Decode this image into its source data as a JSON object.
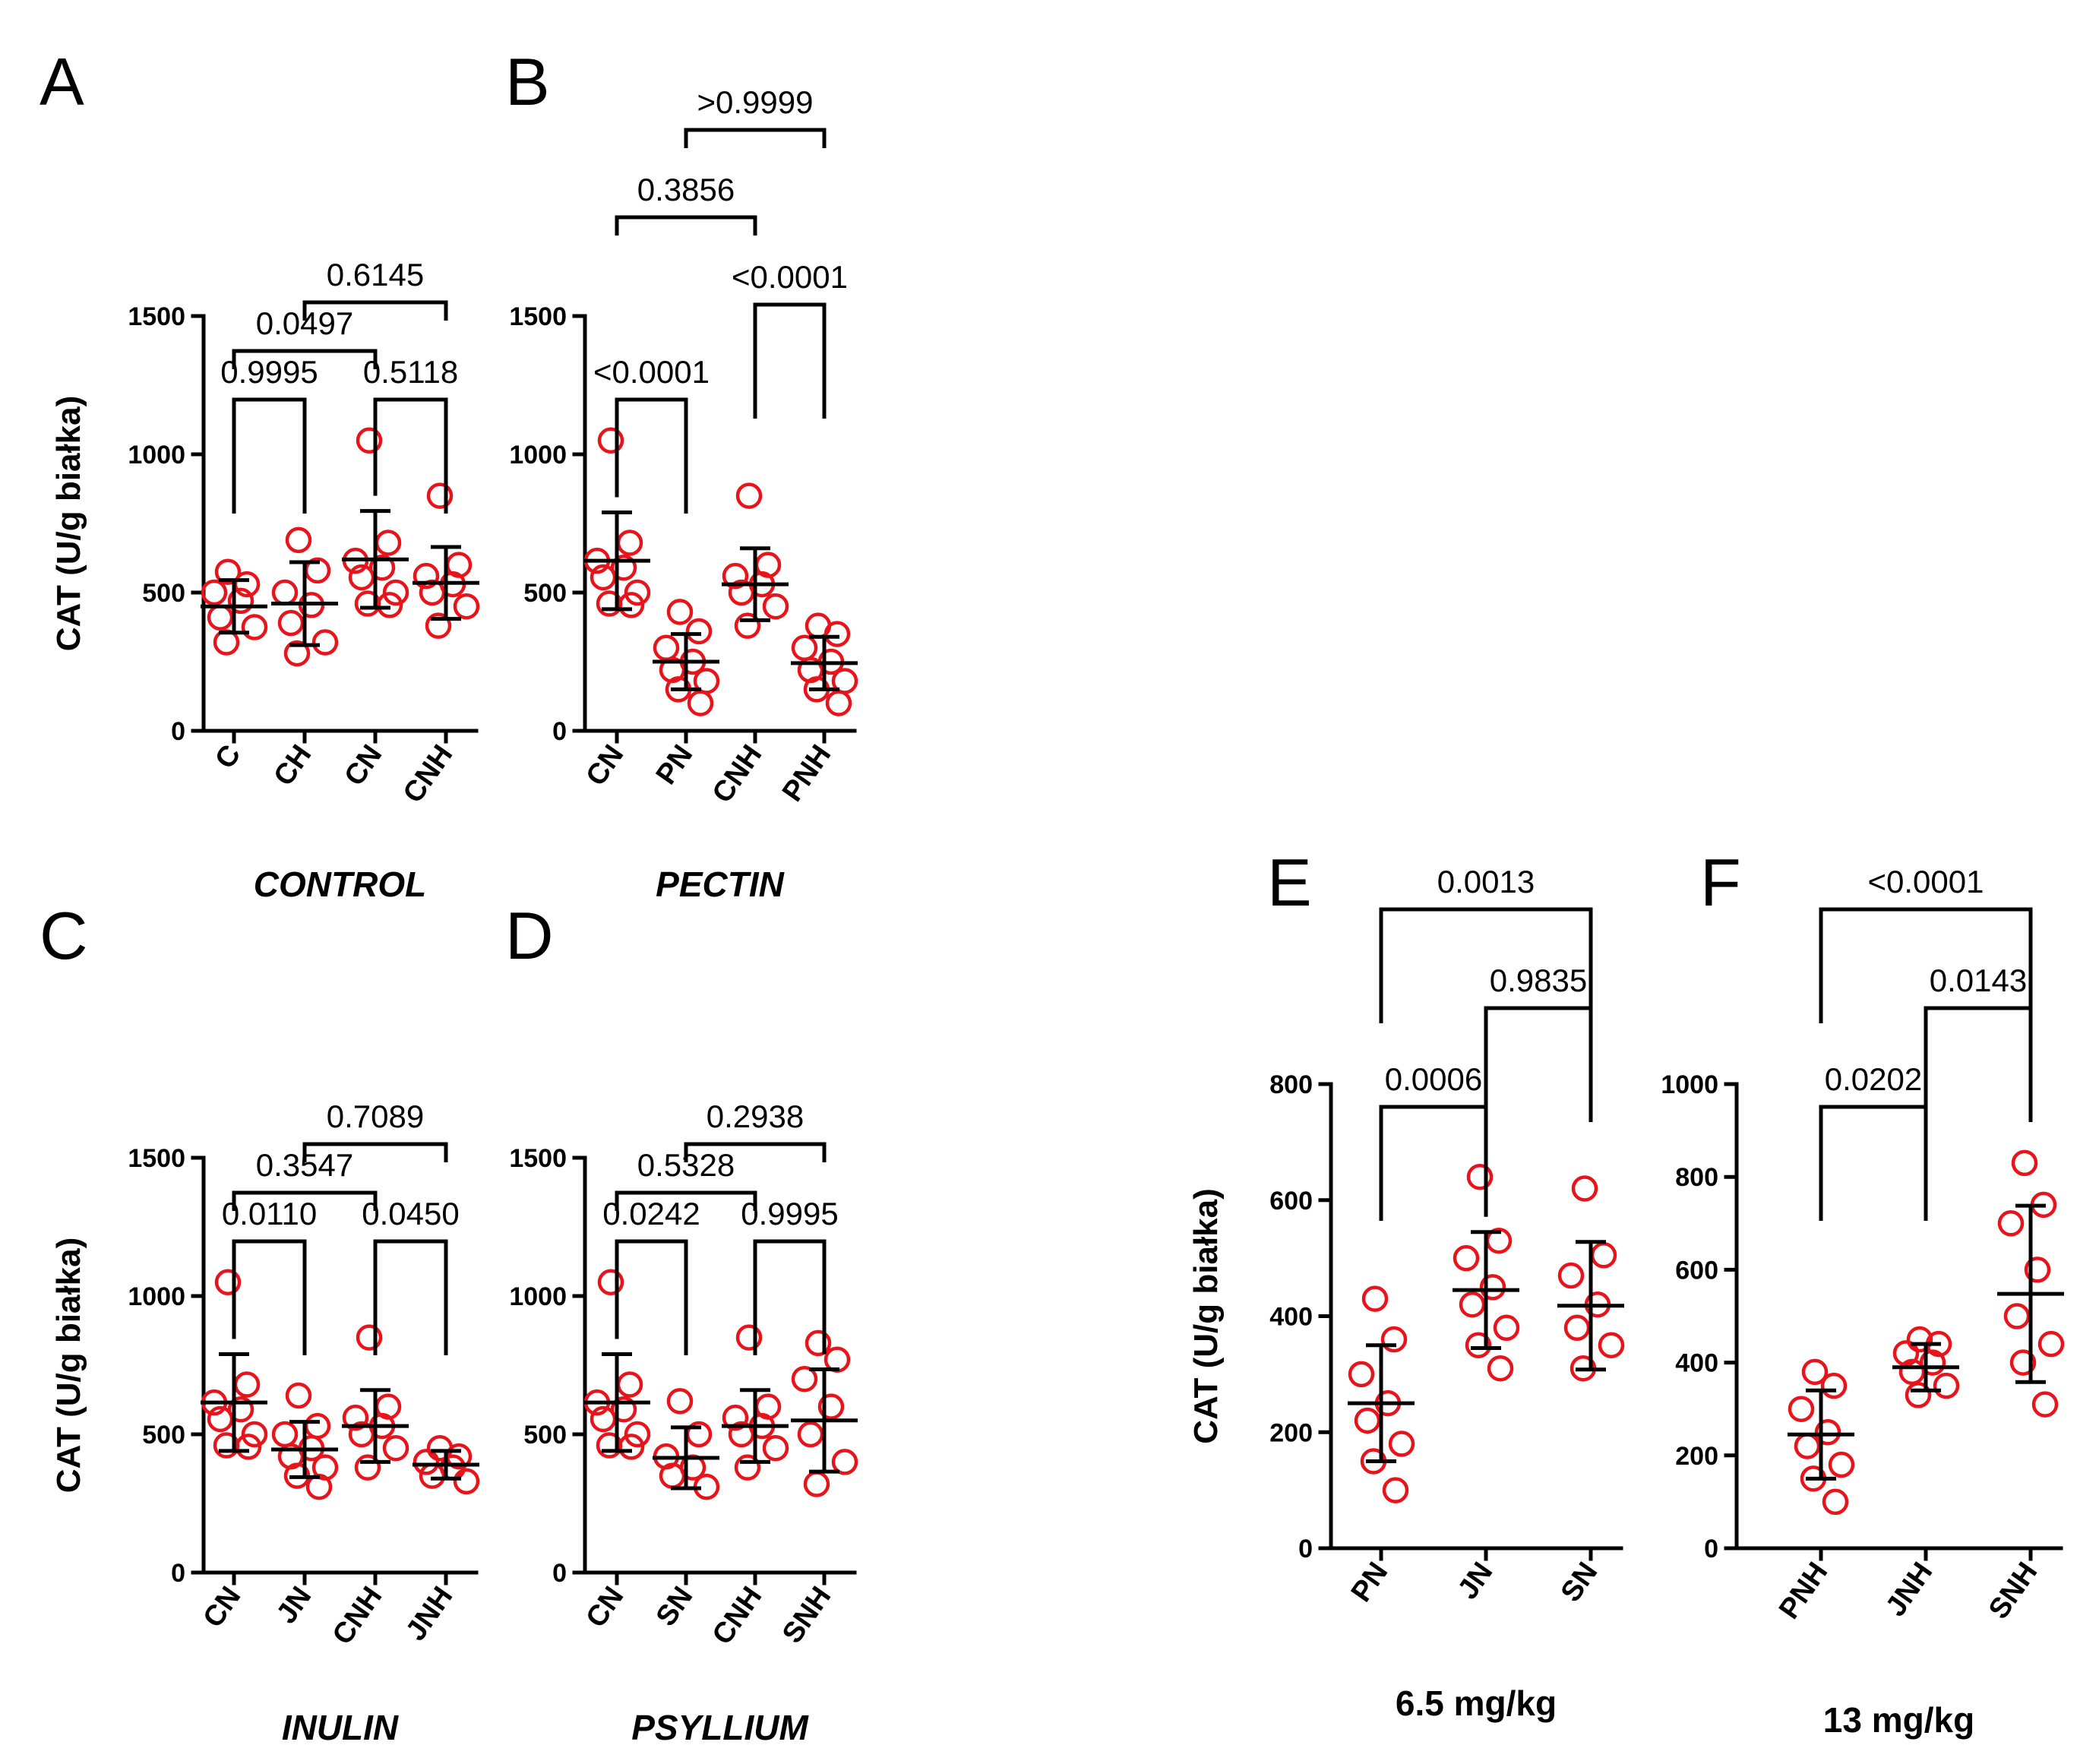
{
  "figure_title": "",
  "colors": {
    "point": "#e8141c",
    "line": "#000000"
  },
  "chart_data": [
    {
      "type": "scatter",
      "panel": "A",
      "group_label": "CONTROL",
      "group_italic": true,
      "ylabel": "CAT (U/g białka)",
      "ylim": [
        0,
        1500
      ],
      "yticks": [
        0,
        500,
        1000,
        1500
      ],
      "categories": [
        "C",
        "CH",
        "CN",
        "CNH"
      ],
      "means": [
        450,
        460,
        620,
        535
      ],
      "sd": [
        95,
        150,
        175,
        130
      ],
      "points": [
        [
          575,
          530,
          500,
          470,
          410,
          375,
          320
        ],
        [
          690,
          580,
          500,
          455,
          390,
          320,
          280
        ],
        [
          1050,
          680,
          615,
          590,
          555,
          500,
          460,
          455
        ],
        [
          850,
          600,
          560,
          530,
          500,
          450,
          380
        ]
      ],
      "comparisons": [
        {
          "from": 0,
          "to": 1,
          "p": "0.9995"
        },
        {
          "from": 2,
          "to": 3,
          "p": "0.5118"
        },
        {
          "from": 0,
          "to": 2,
          "p": "0.0497"
        },
        {
          "from": 1,
          "to": 3,
          "p": "0.6145"
        }
      ]
    },
    {
      "type": "scatter",
      "panel": "B",
      "group_label": "PECTIN",
      "group_italic": true,
      "ylabel": "",
      "ylim": [
        0,
        1500
      ],
      "yticks": [
        0,
        500,
        1000,
        1500
      ],
      "categories": [
        "CN",
        "PN",
        "CNH",
        "PNH"
      ],
      "means": [
        615,
        250,
        530,
        245
      ],
      "sd": [
        175,
        100,
        130,
        95
      ],
      "points": [
        [
          1050,
          680,
          615,
          590,
          555,
          500,
          460,
          455
        ],
        [
          430,
          360,
          300,
          250,
          220,
          180,
          150,
          100
        ],
        [
          850,
          600,
          560,
          530,
          500,
          450,
          380
        ],
        [
          380,
          350,
          300,
          250,
          220,
          180,
          150,
          100
        ]
      ],
      "comparisons": [
        {
          "from": 0,
          "to": 1,
          "p": "<0.0001"
        },
        {
          "from": 2,
          "to": 3,
          "p": "<0.0001"
        },
        {
          "from": 0,
          "to": 2,
          "p": "0.3856"
        },
        {
          "from": 1,
          "to": 3,
          "p": ">0.9999"
        }
      ]
    },
    {
      "type": "scatter",
      "panel": "C",
      "group_label": "INULIN",
      "group_italic": true,
      "ylabel": "CAT (U/g białka)",
      "ylim": [
        0,
        1500
      ],
      "yticks": [
        0,
        500,
        1000,
        1500
      ],
      "categories": [
        "CN",
        "JN",
        "CNH",
        "JNH"
      ],
      "means": [
        615,
        445,
        530,
        390
      ],
      "sd": [
        175,
        100,
        130,
        50
      ],
      "points": [
        [
          1050,
          680,
          615,
          590,
          555,
          500,
          460,
          455
        ],
        [
          640,
          530,
          500,
          450,
          420,
          380,
          350,
          310
        ],
        [
          850,
          600,
          560,
          530,
          500,
          450,
          380
        ],
        [
          450,
          420,
          400,
          380,
          350,
          330
        ]
      ],
      "comparisons": [
        {
          "from": 0,
          "to": 1,
          "p": "0.0110"
        },
        {
          "from": 2,
          "to": 3,
          "p": "0.0450"
        },
        {
          "from": 0,
          "to": 2,
          "p": "0.3547"
        },
        {
          "from": 1,
          "to": 3,
          "p": "0.7089"
        }
      ]
    },
    {
      "type": "scatter",
      "panel": "D",
      "group_label": "PSYLLIUM",
      "group_italic": true,
      "ylabel": "",
      "ylim": [
        0,
        1500
      ],
      "yticks": [
        0,
        500,
        1000,
        1500
      ],
      "categories": [
        "CN",
        "SN",
        "CNH",
        "SNH"
      ],
      "means": [
        615,
        415,
        530,
        550
      ],
      "sd": [
        175,
        110,
        130,
        185
      ],
      "points": [
        [
          1050,
          680,
          615,
          590,
          555,
          500,
          460,
          455
        ],
        [
          620,
          500,
          420,
          380,
          350,
          310
        ],
        [
          850,
          600,
          560,
          530,
          500,
          450,
          380
        ],
        [
          830,
          770,
          700,
          600,
          500,
          400,
          320
        ]
      ],
      "comparisons": [
        {
          "from": 0,
          "to": 1,
          "p": "0.0242"
        },
        {
          "from": 2,
          "to": 3,
          "p": "0.9995"
        },
        {
          "from": 0,
          "to": 2,
          "p": "0.5328"
        },
        {
          "from": 1,
          "to": 3,
          "p": "0.2938"
        }
      ]
    },
    {
      "type": "scatter",
      "panel": "E",
      "group_label": "6.5 mg/kg",
      "group_italic": false,
      "ylabel": "CAT (U/g białka)",
      "ylim": [
        0,
        800
      ],
      "yticks": [
        0,
        200,
        400,
        600,
        800
      ],
      "categories": [
        "PN",
        "JN",
        "SN"
      ],
      "means": [
        250,
        445,
        418
      ],
      "sd": [
        100,
        100,
        110
      ],
      "points": [
        [
          430,
          360,
          300,
          250,
          220,
          180,
          150,
          100
        ],
        [
          640,
          530,
          500,
          450,
          420,
          380,
          350,
          310
        ],
        [
          620,
          505,
          470,
          420,
          380,
          350,
          310
        ]
      ],
      "comparisons": [
        {
          "from": 0,
          "to": 1,
          "p": "0.0006"
        },
        {
          "from": 1,
          "to": 2,
          "p": "0.9835"
        },
        {
          "from": 0,
          "to": 2,
          "p": "0.0013"
        }
      ]
    },
    {
      "type": "scatter",
      "panel": "F",
      "group_label": "13 mg/kg",
      "group_italic": false,
      "ylabel": "",
      "ylim": [
        0,
        1000
      ],
      "yticks": [
        0,
        200,
        400,
        600,
        800,
        1000
      ],
      "categories": [
        "PNH",
        "JNH",
        "SNH"
      ],
      "means": [
        245,
        390,
        548
      ],
      "sd": [
        95,
        50,
        190
      ],
      "points": [
        [
          380,
          350,
          300,
          250,
          220,
          180,
          150,
          100
        ],
        [
          450,
          440,
          420,
          400,
          380,
          350,
          330
        ],
        [
          830,
          740,
          700,
          600,
          500,
          440,
          400,
          310
        ]
      ],
      "comparisons": [
        {
          "from": 0,
          "to": 1,
          "p": "0.0202"
        },
        {
          "from": 1,
          "to": 2,
          "p": "0.0143"
        },
        {
          "from": 0,
          "to": 2,
          "p": "<0.0001"
        }
      ]
    }
  ]
}
